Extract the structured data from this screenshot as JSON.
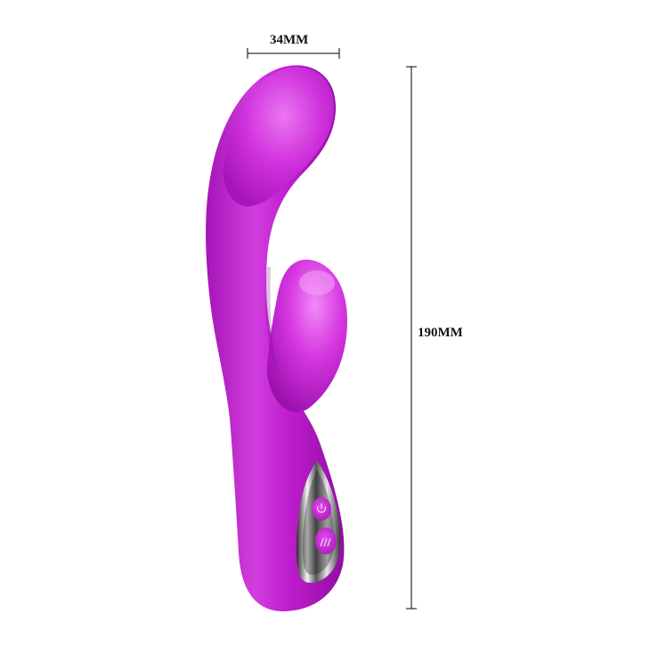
{
  "dimensions": {
    "width_label": "34MM",
    "height_label": "190MM"
  },
  "colors": {
    "body": "#c21ed0",
    "body_light": "#e95ef0",
    "body_dark": "#8f0fa0",
    "panel": "#d0d0d0",
    "dimension_lines": "#000000"
  },
  "icons": [
    "power-icon",
    "vibration-mode-icon"
  ]
}
